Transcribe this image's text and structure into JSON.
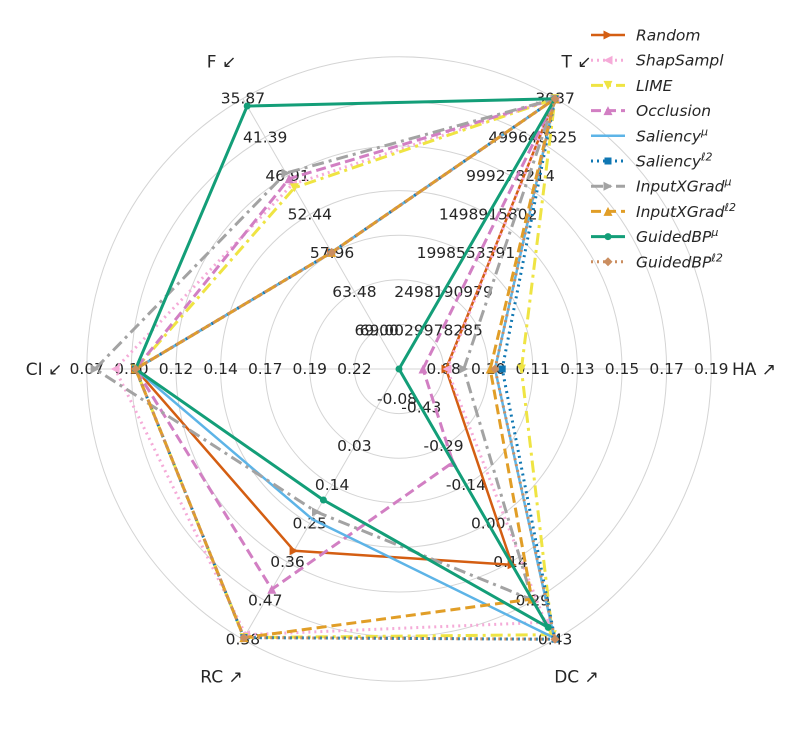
{
  "chart_data": {
    "type": "radar",
    "grid": true,
    "legend_position": "top-right",
    "axes": [
      {
        "key": "HA",
        "label": "HA ↗",
        "ticks": [
          "0.08",
          "0.10",
          "0.11",
          "0.13",
          "0.15",
          "0.17",
          "0.19"
        ],
        "range": [
          0.06,
          0.19
        ]
      },
      {
        "key": "T",
        "label": "T ↙",
        "ticks": [
          "69.0029978285",
          "2498190979",
          "1998553391",
          "1498915802",
          "999278214",
          "499640625",
          "3037"
        ],
        "range": [
          69.0029978285,
          3037
        ]
      },
      {
        "key": "F",
        "label": "F ↙",
        "ticks": [
          "69.00",
          "63.48",
          "57.96",
          "52.44",
          "46.91",
          "41.39",
          "35.87"
        ],
        "range": [
          74.52,
          35.87
        ]
      },
      {
        "key": "CI",
        "label": "CI ↙",
        "ticks": [
          "0.22",
          "0.19",
          "0.17",
          "0.14",
          "0.12",
          "0.10",
          "0.07"
        ],
        "range": [
          0.24,
          0.07
        ]
      },
      {
        "key": "RC",
        "label": "RC ↗",
        "ticks": [
          "0.03",
          "0.14",
          "0.25",
          "0.36",
          "0.47",
          "0.58"
        ],
        "range": [
          -0.08,
          0.58
        ]
      },
      {
        "key": "DC",
        "label": "DC ↗",
        "ticks": [
          "-0.43",
          "-0.29",
          "-0.14",
          "0.00",
          "0.14",
          "0.29",
          "0.43"
        ],
        "range": [
          -0.58,
          0.43
        ]
      }
    ],
    "center_tick": "-0.08",
    "series": [
      {
        "name": "Random",
        "color": "#d45e12",
        "dash": "solid",
        "width": 2.5,
        "marker": "triangle-right",
        "values": [
          0.0796,
          1535000000.0,
          57.84,
          0.0965,
          0.364,
          0.152
        ]
      },
      {
        "name": "ShapSampl",
        "color": "#f5abd8",
        "dash": "dot",
        "width": 3,
        "marker": "triangle-left",
        "values": [
          0.08,
          3037,
          48.1,
          0.0853,
          0.569,
          0.367
        ]
      },
      {
        "name": "LIME",
        "color": "#efe443",
        "dash": "dashdot",
        "width": 3,
        "marker": "triangle-down",
        "values": [
          0.111,
          3037,
          48.6,
          0.0965,
          0.576,
          0.413
        ]
      },
      {
        "name": "Occlusion",
        "color": "#d27fc3",
        "dash": "dash",
        "width": 3,
        "marker": "triangle-up",
        "values": [
          0.07,
          1378000000.0,
          47.3,
          0.0965,
          0.458,
          -0.231
        ]
      },
      {
        "name": "Saliency^μ",
        "color": "#5db4e7",
        "dash": "solid",
        "width": 2.5,
        "marker": "none",
        "values": [
          0.1,
          3037,
          57.84,
          0.0965,
          0.287,
          0.425
        ]
      },
      {
        "name": "Saliency^ℓ2",
        "color": "#0f77b3",
        "dash": "dot",
        "width": 3,
        "marker": "square",
        "values": [
          0.103,
          3037,
          57.84,
          0.0965,
          0.576,
          0.43
        ]
      },
      {
        "name": "InputXGrad^μ",
        "color": "#a3a3a3",
        "dash": "dashdot",
        "width": 3,
        "marker": "caret-right",
        "values": [
          0.087,
          3037,
          46.5,
          0.0744,
          0.269,
          0.283
        ]
      },
      {
        "name": "InputXGrad^ℓ2",
        "color": "#e19e27",
        "dash": "dash",
        "width": 3,
        "marker": "tri-up",
        "values": [
          0.098,
          3037,
          57.84,
          0.0965,
          0.576,
          0.28
        ]
      },
      {
        "name": "GuidedBP^μ",
        "color": "#139e78",
        "dash": "solid",
        "width": 3,
        "marker": "circle",
        "values": [
          0.06,
          3037,
          36.9,
          0.0965,
          0.24,
          0.386
        ]
      },
      {
        "name": "GuidedBP^ℓ2",
        "color": "#cb8e60",
        "dash": "dot",
        "width": 3,
        "marker": "diamond",
        "values": [
          0.1,
          3037,
          57.84,
          0.0965,
          0.576,
          0.43
        ]
      }
    ]
  }
}
